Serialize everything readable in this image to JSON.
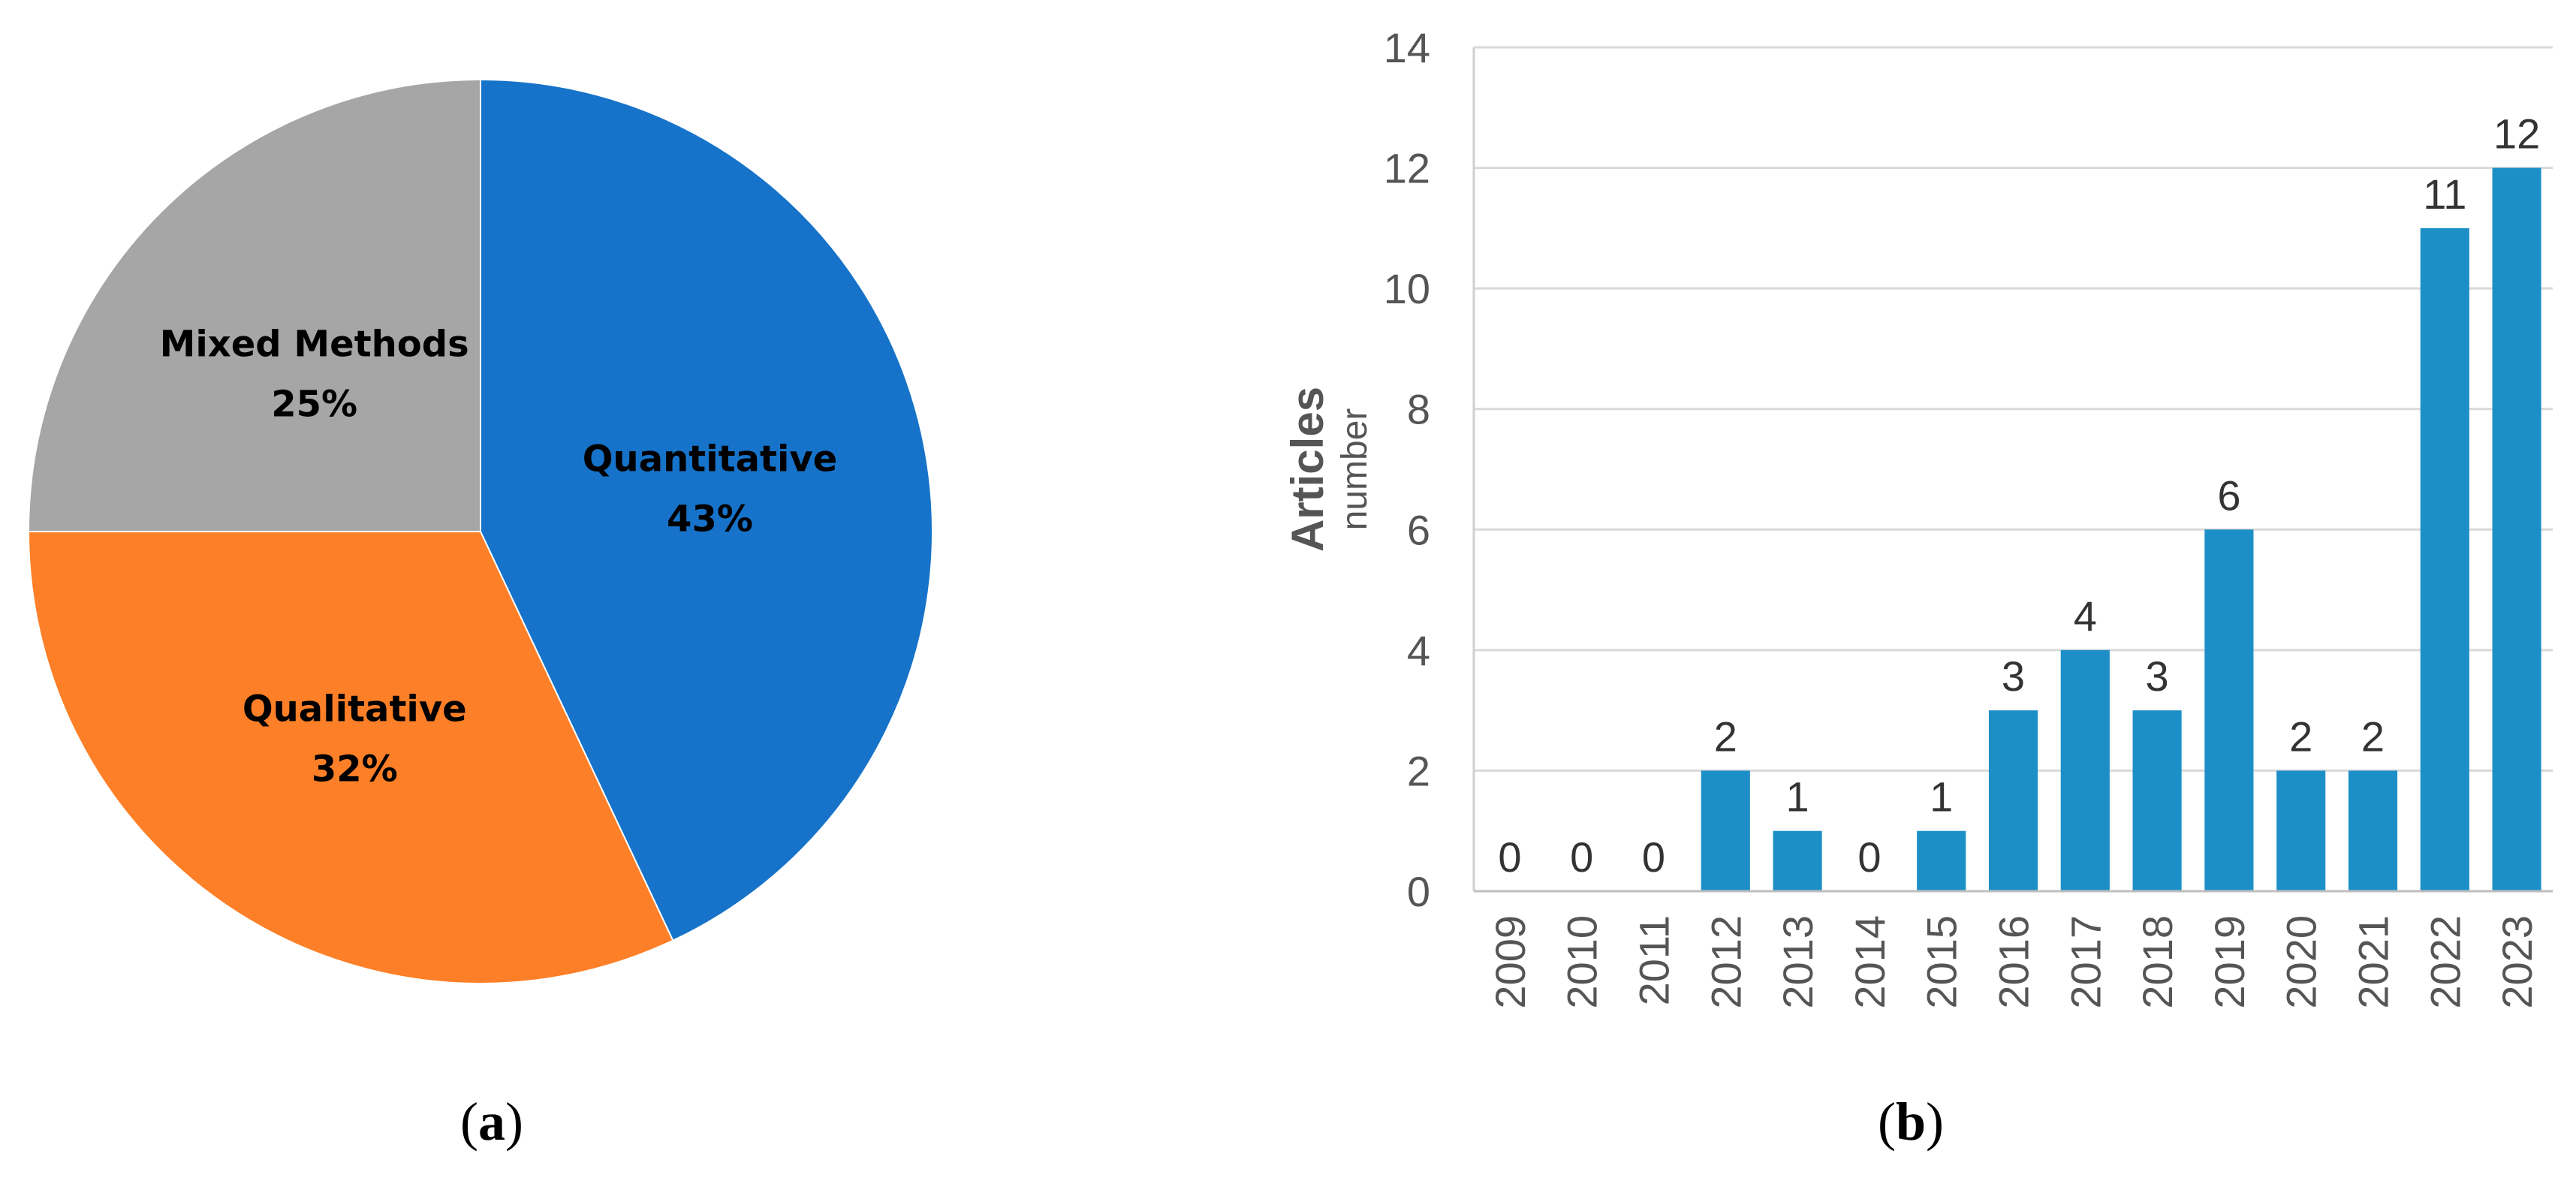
{
  "chart_data": [
    {
      "type": "pie",
      "caption": "(a)",
      "caption_letter": "a",
      "slices": [
        {
          "name": "Quantitative",
          "value": 43,
          "label": "43%",
          "color": "#1673c9"
        },
        {
          "name": "Qualitative",
          "value": 32,
          "label": "32%",
          "color": "#fd7f27"
        },
        {
          "name": "Mixed Methods",
          "value": 25,
          "label": "25%",
          "color": "#a6a6a6"
        }
      ]
    },
    {
      "type": "bar",
      "caption": "(b)",
      "caption_letter": "b",
      "ylabel": "Articles",
      "ylabel_sub": "number",
      "ylim": [
        0,
        14
      ],
      "yticks": [
        0,
        2,
        4,
        6,
        8,
        10,
        12,
        14
      ],
      "grid": true,
      "bar_color": "#1d8fc7",
      "categories": [
        "2009",
        "2010",
        "2011",
        "2012",
        "2013",
        "2014",
        "2015",
        "2016",
        "2017",
        "2018",
        "2019",
        "2020",
        "2021",
        "2022",
        "2023"
      ],
      "values": [
        0,
        0,
        0,
        2,
        1,
        0,
        1,
        3,
        4,
        3,
        6,
        2,
        2,
        11,
        12
      ]
    }
  ]
}
